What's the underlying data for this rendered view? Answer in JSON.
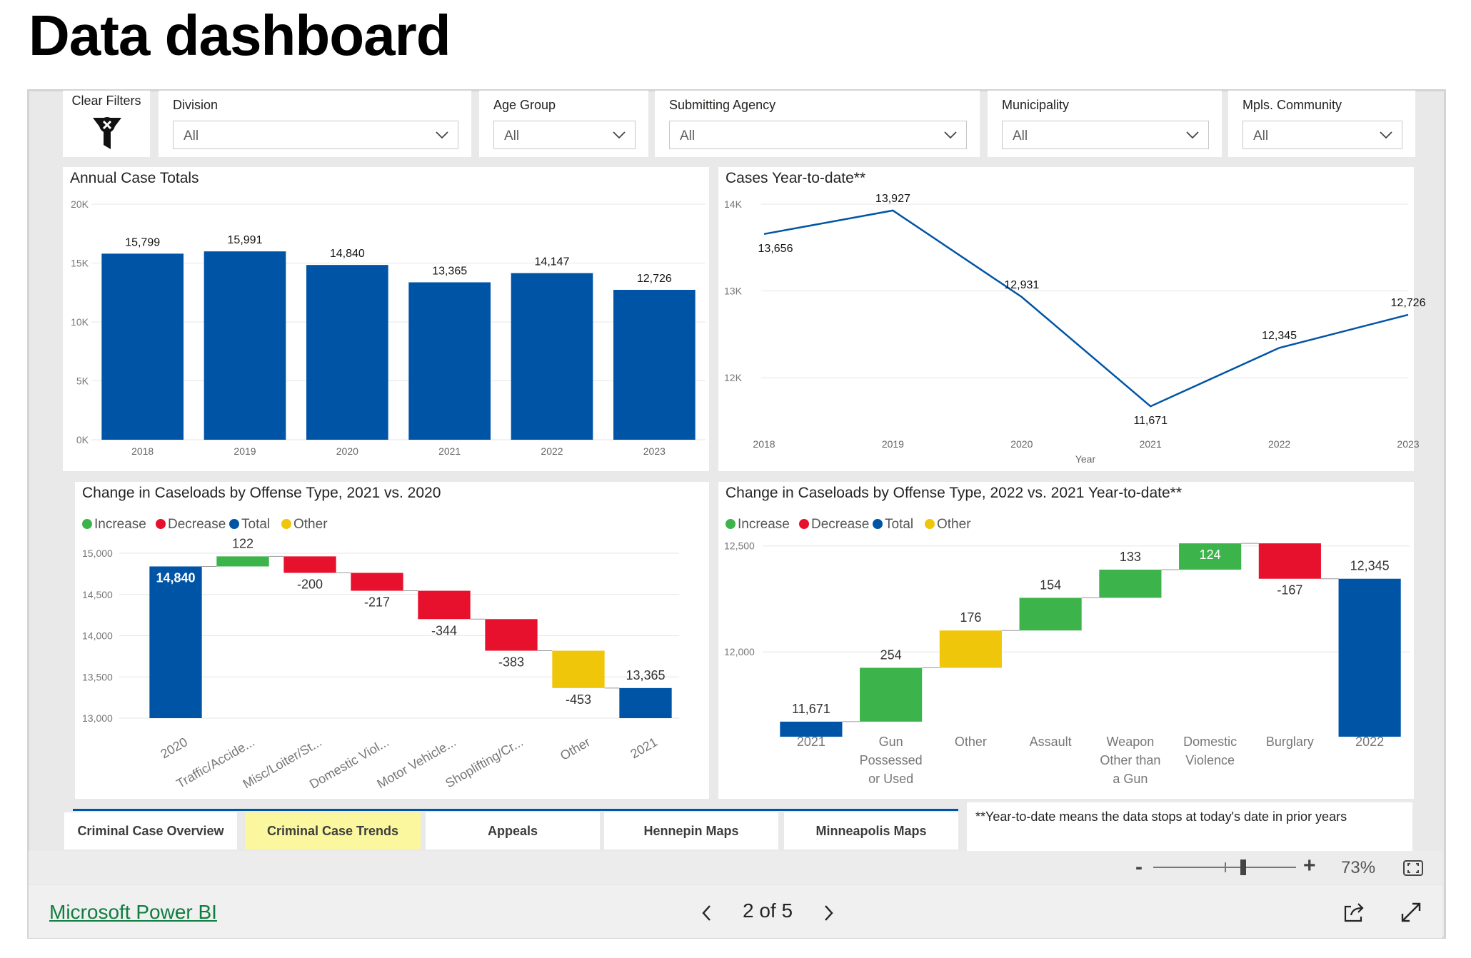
{
  "page": {
    "title": "Data dashboard"
  },
  "filters": {
    "clear_label": "Clear Filters",
    "slicers": [
      {
        "label": "Division",
        "value": "All"
      },
      {
        "label": "Age Group",
        "value": "All"
      },
      {
        "label": "Submitting Agency",
        "value": "All"
      },
      {
        "label": "Municipality",
        "value": "All"
      },
      {
        "label": "Mpls. Community",
        "value": "All"
      }
    ]
  },
  "legend": {
    "increase": "Increase",
    "decrease": "Decrease",
    "total": "Total",
    "other": "Other"
  },
  "colors": {
    "blue": "#0054a6",
    "green": "#3cb44b",
    "red": "#e8112d",
    "yellow": "#f0c60a"
  },
  "chart_data": [
    {
      "type": "bar",
      "title": "Annual Case Totals",
      "categories": [
        "2018",
        "2019",
        "2020",
        "2021",
        "2022",
        "2023"
      ],
      "values": [
        15799,
        15991,
        14840,
        13365,
        14147,
        12726
      ],
      "value_labels": [
        "15,799",
        "15,991",
        "14,840",
        "13,365",
        "14,147",
        "12,726"
      ],
      "ylim": [
        0,
        20000
      ],
      "yticks": [
        "0K",
        "5K",
        "10K",
        "15K",
        "20K"
      ],
      "grid": true
    },
    {
      "type": "line",
      "title": "Cases Year-to-date**",
      "x": [
        "2018",
        "2019",
        "2020",
        "2021",
        "2022",
        "2023"
      ],
      "values": [
        13656,
        13927,
        12931,
        11671,
        12345,
        12726
      ],
      "value_labels": [
        "13,656",
        "13,927",
        "12,931",
        "11,671",
        "12,345",
        "12,726"
      ],
      "xlabel": "Year",
      "ylim": [
        11500,
        14000
      ],
      "yticks": [
        "12K",
        "13K",
        "14K"
      ],
      "grid": true
    },
    {
      "type": "waterfall",
      "title": "Change in Caseloads by Offense Type, 2021 vs. 2020",
      "categories": [
        "2020",
        "Traffic/Accide...",
        "Misc/Loiter/St...",
        "Domestic Viol...",
        "Motor Vehicle...",
        "Shoplifting/Cr...",
        "Other",
        "2021"
      ],
      "values": [
        14840,
        122,
        -200,
        -217,
        -344,
        -383,
        -453,
        13365
      ],
      "kinds": [
        "total",
        "increase",
        "decrease",
        "decrease",
        "decrease",
        "decrease",
        "other",
        "total"
      ],
      "value_labels": [
        "14,840",
        "122",
        "-200",
        "-217",
        "-344",
        "-383",
        "-453",
        "13,365"
      ],
      "ylim": [
        13000,
        15000
      ],
      "yticks": [
        "13,000",
        "13,500",
        "14,000",
        "14,500",
        "15,000"
      ]
    },
    {
      "type": "waterfall",
      "title": "Change in Caseloads by Offense Type, 2022 vs. 2021 Year-to-date**",
      "categories": [
        "2021",
        "Gun Possessed or Used",
        "Other",
        "Assault",
        "Weapon Other than a Gun",
        "Domestic Violence",
        "Burglary",
        "2022"
      ],
      "category_lines": [
        [
          "2021"
        ],
        [
          "Gun",
          "Possessed",
          "or Used"
        ],
        [
          "Other"
        ],
        [
          "Assault"
        ],
        [
          "Weapon",
          "Other than",
          "a Gun"
        ],
        [
          "Domestic",
          "Violence"
        ],
        [
          "Burglary"
        ],
        [
          "2022"
        ]
      ],
      "values": [
        11671,
        254,
        176,
        154,
        133,
        124,
        -167,
        12345
      ],
      "kinds": [
        "total",
        "increase",
        "other",
        "increase",
        "increase",
        "increase",
        "decrease",
        "total"
      ],
      "value_labels": [
        "11,671",
        "254",
        "176",
        "154",
        "133",
        "124",
        "-167",
        "12,345"
      ],
      "ylim": [
        11600,
        12600
      ],
      "yticks": [
        "12,000",
        "12,500"
      ]
    }
  ],
  "tabs": [
    {
      "label": "Criminal Case Overview",
      "active": false
    },
    {
      "label": "Criminal Case Trends",
      "active": true
    },
    {
      "label": "Appeals",
      "active": false
    },
    {
      "label": "Hennepin Maps",
      "active": false
    },
    {
      "label": "Minneapolis Maps",
      "active": false
    }
  ],
  "footnote": "**Year-to-date means the data stops at today's date in prior years",
  "zoom": {
    "minus": "-",
    "plus": "+",
    "level": "73%",
    "level_value": 73
  },
  "footer": {
    "brand": "Microsoft Power BI",
    "page_indicator": "2 of 5"
  }
}
